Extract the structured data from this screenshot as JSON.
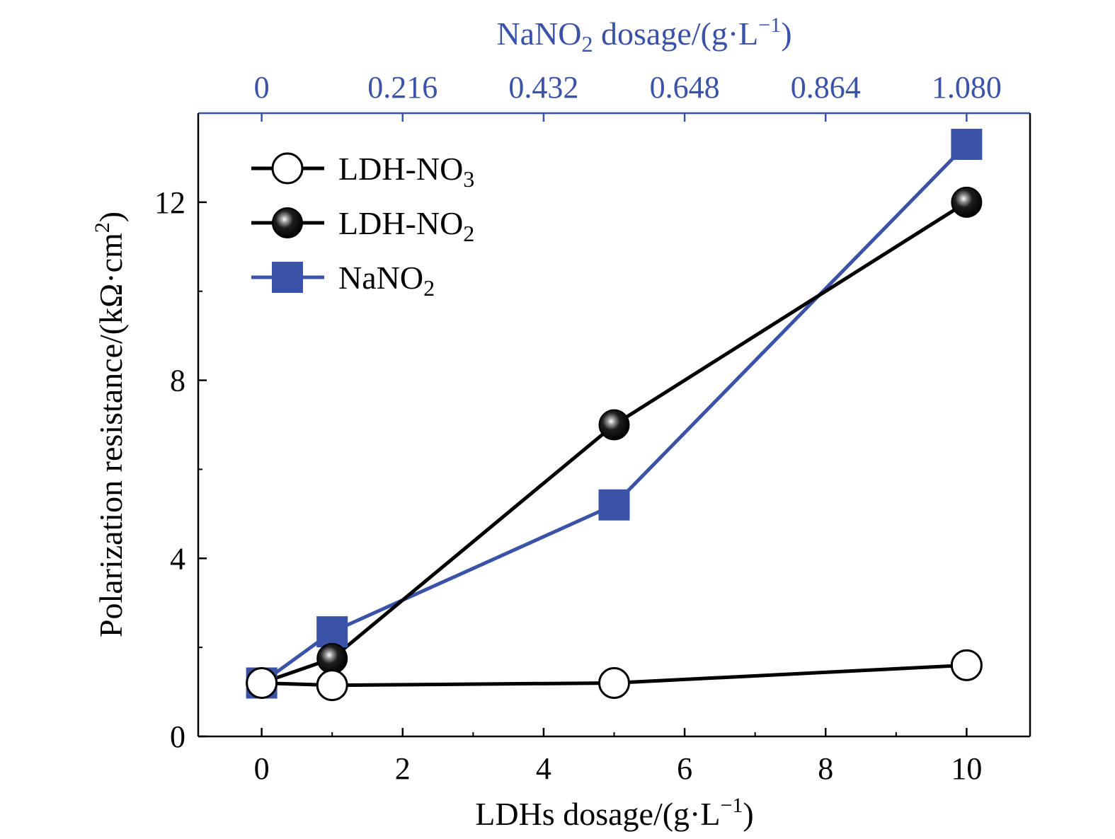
{
  "chart_data": {
    "type": "line",
    "x_axis_bottom": {
      "label": "LDHs dosage/(g·L",
      "label_sup": "−1",
      "label_end": ")",
      "range": [
        -0.9,
        10.9
      ],
      "ticks": [
        0,
        2,
        4,
        6,
        8,
        10
      ],
      "tick_labels": [
        "0",
        "2",
        "4",
        "6",
        "8",
        "10"
      ]
    },
    "x_axis_top": {
      "label": "NaNO",
      "label_sub": "2",
      "label_mid": " dosage/(g·L",
      "label_sup": "−1",
      "label_end": ")",
      "ticks": [
        0,
        0.216,
        0.432,
        0.648,
        0.864,
        1.08
      ],
      "tick_labels": [
        "0",
        "0.216",
        "0.432",
        "0.648",
        "0.864",
        "1.080"
      ],
      "color": "#3a52a8"
    },
    "y_axis": {
      "label": "Polarization resistance/(kΩ·cm",
      "label_sup": "2",
      "label_end": ")",
      "range": [
        0,
        14
      ],
      "ticks": [
        0,
        4,
        8,
        12
      ],
      "tick_labels": [
        "0",
        "4",
        "8",
        "12"
      ]
    },
    "series": [
      {
        "name": "LDH-NO",
        "name_sub": "3",
        "marker": "open-circle",
        "color": "#000000",
        "x": [
          0,
          1,
          5,
          10
        ],
        "y": [
          1.2,
          1.15,
          1.2,
          1.6
        ]
      },
      {
        "name": "LDH-NO",
        "name_sub": "2",
        "marker": "filled-sphere",
        "color": "#000000",
        "x": [
          0,
          1,
          5,
          10
        ],
        "y": [
          1.2,
          1.75,
          7.0,
          12.0
        ]
      },
      {
        "name": "NaNO",
        "name_sub": "2",
        "marker": "filled-square",
        "color": "#3a52a8",
        "x": [
          0,
          1,
          5,
          10
        ],
        "y": [
          1.2,
          2.35,
          5.2,
          13.3
        ]
      }
    ],
    "legend_position": "top-left",
    "grid": false
  }
}
